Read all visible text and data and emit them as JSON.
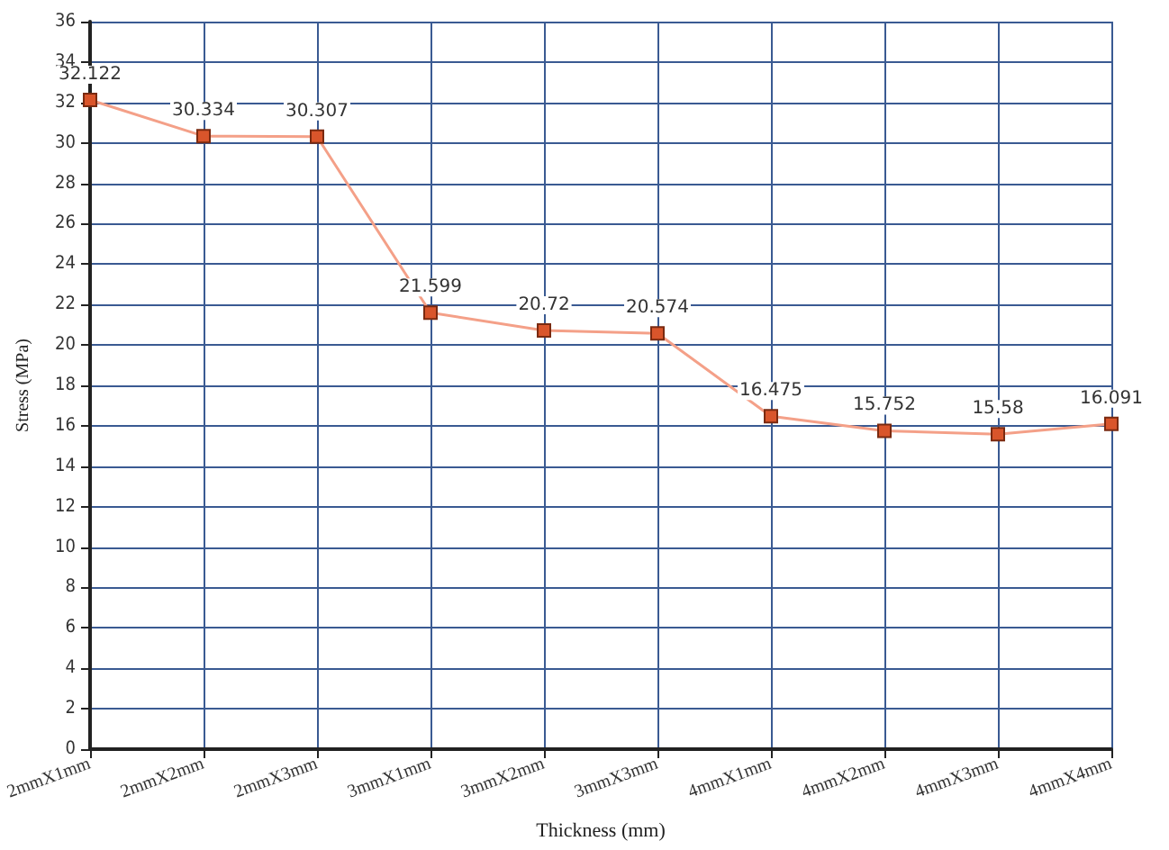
{
  "chart_data": {
    "type": "line",
    "xlabel": "Thickness (mm)",
    "ylabel": "Stress (MPa)",
    "categories": [
      "2mmX1mm",
      "2mmX2mm",
      "2mmX3mm",
      "3mmX1mm",
      "3mmX2mm",
      "3mmX3mm",
      "4mmX1mm",
      "4mmX2mm",
      "4mmX3mm",
      "4mmX4mm"
    ],
    "series": [
      {
        "color": "#f4a088",
        "values": [
          32.122,
          30.334,
          30.307,
          21.599,
          20.72,
          20.574,
          16.475,
          15.752,
          15.58,
          16.091
        ]
      }
    ],
    "ylim": [
      0,
      36
    ],
    "yticks": [
      0,
      2,
      4,
      6,
      8,
      10,
      12,
      14,
      16,
      18,
      20,
      22,
      24,
      26,
      28,
      30,
      32,
      34,
      36
    ],
    "grid": true,
    "marker": "square",
    "line_style": "solid",
    "data_labels": true
  }
}
